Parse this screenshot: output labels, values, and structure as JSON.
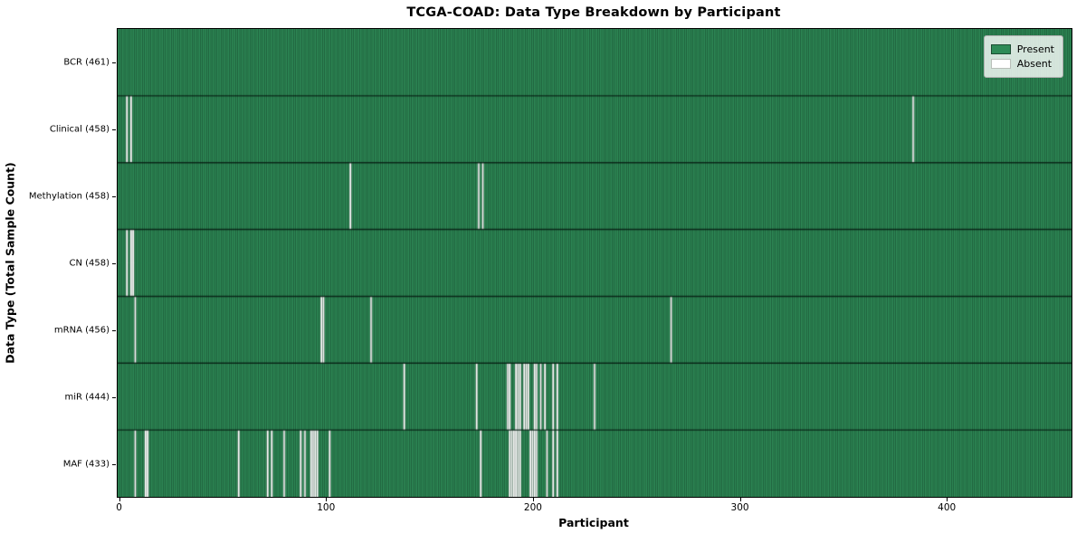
{
  "figure": {
    "title": "TCGA-COAD: Data Type Breakdown by Participant",
    "xlabel": "Participant",
    "ylabel": "Data Type (Total Sample Count)"
  },
  "legend": {
    "position": "upper right",
    "items": [
      {
        "label": "Present",
        "color": "#2e8b57",
        "edge": "#1b4d32"
      },
      {
        "label": "Absent",
        "color": "#ffffff",
        "edge": "#b9bfb9"
      }
    ]
  },
  "chart_data": {
    "type": "heatmap",
    "title": "TCGA-COAD: Data Type Breakdown by Participant",
    "xlabel": "Participant",
    "ylabel": "Data Type (Total Sample Count)",
    "n_participants": 461,
    "xlim": [
      -0.5,
      460.5
    ],
    "x_ticks": [
      0,
      100,
      200,
      300,
      400
    ],
    "grid": false,
    "legend_entries": [
      "Present",
      "Absent"
    ],
    "legend_position": "upper right",
    "colors": {
      "present": "#2e8b57",
      "absent": "#ffffff",
      "bar_edge": "rgba(9,38,24,0.55)",
      "row_divider": "rgba(6,26,16,0.85)"
    },
    "rows": [
      {
        "name": "BCR",
        "label": "BCR (461)",
        "present_count": 461,
        "absent_participants": []
      },
      {
        "name": "Clinical",
        "label": "Clinical (458)",
        "present_count": 458,
        "absent_participants": [
          4,
          6,
          384
        ]
      },
      {
        "name": "Methylation",
        "label": "Methylation (458)",
        "present_count": 458,
        "absent_participants": [
          112,
          174,
          176
        ]
      },
      {
        "name": "CN",
        "label": "CN (458)",
        "present_count": 458,
        "absent_participants": [
          4,
          6,
          7
        ]
      },
      {
        "name": "mRNA",
        "label": "mRNA (456)",
        "present_count": 456,
        "absent_participants": [
          8,
          98,
          99,
          122,
          267
        ]
      },
      {
        "name": "miR",
        "label": "miR (444)",
        "present_count": 444,
        "absent_participants": [
          138,
          173,
          188,
          189,
          192,
          193,
          194,
          196,
          197,
          198,
          201,
          202,
          204,
          206,
          210,
          212,
          230
        ]
      },
      {
        "name": "MAF",
        "label": "MAF (433)",
        "present_count": 433,
        "absent_participants": [
          8,
          13,
          14,
          58,
          72,
          74,
          80,
          88,
          90,
          93,
          94,
          95,
          96,
          102,
          175,
          189,
          190,
          191,
          192,
          193,
          194,
          199,
          200,
          201,
          202,
          207,
          210,
          212
        ]
      }
    ]
  }
}
